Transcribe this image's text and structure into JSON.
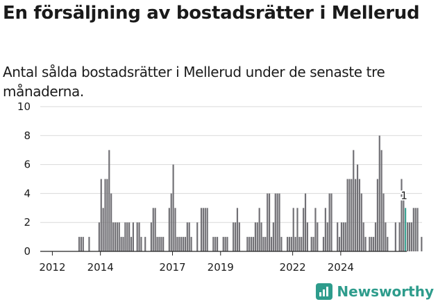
{
  "title": "En försäljning av bostadsrätter i Mellerud",
  "subtitle": "Antal sålda bostadsrätter i Mellerud under de senaste tre månaderna.",
  "brand": "Newsworthy",
  "colors": {
    "bar": "#717075",
    "highlight": "#2e9c8c",
    "grid": "#d9d9d9",
    "brand": "#2e9c8c"
  },
  "chart_data": {
    "type": "bar",
    "title": "En försäljning av bostadsrätter i Mellerud",
    "subtitle": "Antal sålda bostadsrätter i Mellerud under de senaste tre månaderna.",
    "xlabel": "",
    "ylabel": "",
    "ylim": [
      0,
      10
    ],
    "yticks": [
      0,
      2,
      4,
      6,
      8,
      10
    ],
    "xticks": [
      "2012",
      "2014",
      "2017",
      "2019",
      "2022",
      "2024"
    ],
    "grid": true,
    "x_start": "2011-08",
    "period": "month",
    "values": [
      0,
      0,
      0,
      0,
      0,
      0,
      0,
      0,
      0,
      0,
      0,
      0,
      0,
      0,
      0,
      0,
      0,
      0,
      1,
      1,
      1,
      0,
      0,
      1,
      0,
      0,
      0,
      0,
      2,
      5,
      3,
      5,
      5,
      7,
      4,
      2,
      2,
      2,
      2,
      1,
      1,
      2,
      2,
      2,
      1,
      2,
      0,
      2,
      2,
      1,
      0,
      1,
      0,
      0,
      2,
      3,
      3,
      1,
      1,
      1,
      1,
      0,
      0,
      3,
      4,
      6,
      3,
      1,
      1,
      1,
      1,
      1,
      2,
      2,
      1,
      0,
      0,
      2,
      0,
      3,
      3,
      3,
      3,
      0,
      0,
      1,
      1,
      1,
      0,
      0,
      1,
      1,
      1,
      0,
      0,
      2,
      2,
      3,
      2,
      0,
      0,
      0,
      1,
      1,
      1,
      1,
      2,
      2,
      3,
      2,
      1,
      1,
      4,
      4,
      1,
      2,
      4,
      4,
      4,
      1,
      0,
      0,
      1,
      1,
      1,
      3,
      1,
      3,
      1,
      1,
      3,
      4,
      2,
      0,
      1,
      1,
      3,
      2,
      0,
      0,
      1,
      3,
      2,
      4,
      4,
      0,
      0,
      2,
      1,
      2,
      2,
      2,
      5,
      5,
      5,
      7,
      5,
      6,
      5,
      4,
      2,
      1,
      0,
      1,
      1,
      1,
      2,
      5,
      8,
      7,
      4,
      2,
      1,
      0,
      0,
      0,
      2,
      0,
      2,
      5,
      4,
      3,
      2,
      2,
      2,
      3,
      3,
      3,
      0,
      1
    ],
    "highlight_index": 181,
    "highlight_label": "1"
  }
}
